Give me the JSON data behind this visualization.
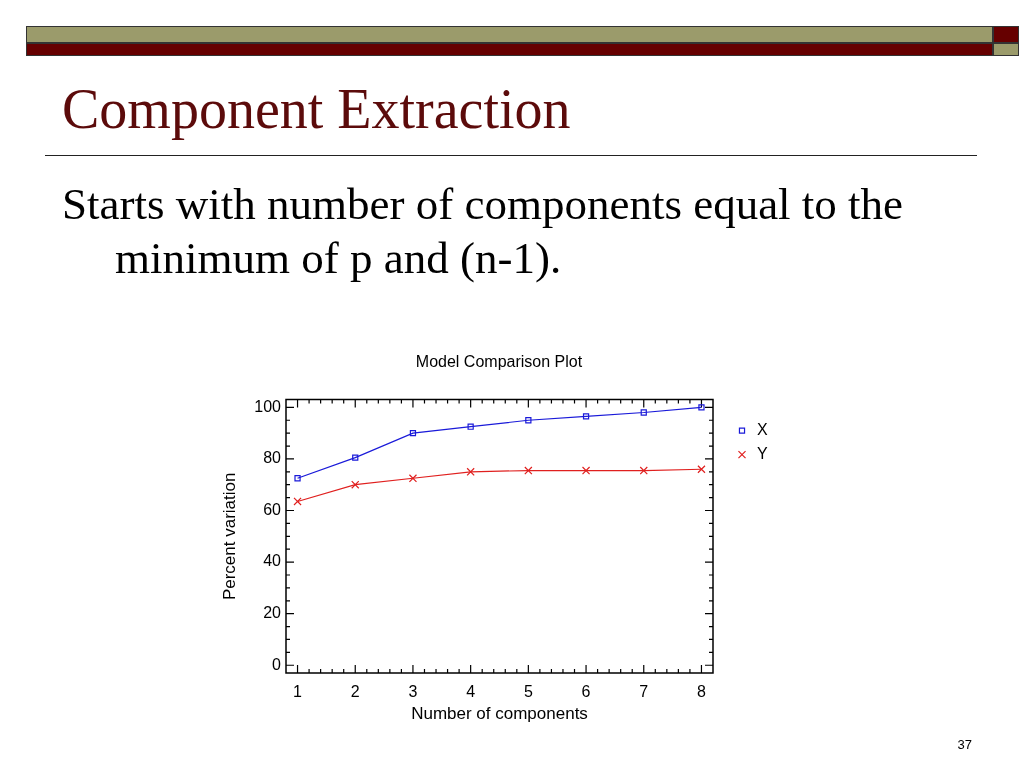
{
  "chart_data": {
    "type": "line",
    "title": "Component Extraction",
    "subtitle": "Starts with number of components equal to the minimum of p and (n-1).",
    "annotations": [
      "Model Comparison Plot",
      "37"
    ],
    "xlabel": "Number of components",
    "ylabel": "Percent variation",
    "x": [
      1,
      2,
      3,
      4,
      5,
      6,
      7,
      8
    ],
    "series": [
      {
        "name": "X",
        "color": "#1a1ad9",
        "marker": "square",
        "values": [
          72.5,
          80.5,
          90,
          92.5,
          95,
          96.5,
          98,
          100
        ]
      },
      {
        "name": "Y",
        "color": "#e0201f",
        "marker": "cross",
        "values": [
          63.5,
          70,
          72.5,
          75,
          75.5,
          75.5,
          75.5,
          76
        ]
      }
    ],
    "xlim": [
      0.8,
      8.2
    ],
    "xticks": [
      1,
      {
        "value": 1.2,
        "label": null
      },
      {
        "value": 1.4,
        "label": null
      },
      {
        "value": 1.6,
        "label": null
      },
      {
        "value": 1.8,
        "label": null
      },
      2,
      {
        "value": 2.2,
        "label": null
      },
      {
        "value": 2.4,
        "label": null
      },
      {
        "value": 2.6,
        "label": null
      },
      {
        "value": 2.8,
        "label": null
      },
      3,
      {
        "value": 3.2,
        "label": null
      },
      {
        "value": 3.4,
        "label": null
      },
      {
        "value": 3.6,
        "label": null
      },
      {
        "value": 3.8,
        "label": null
      },
      4,
      {
        "value": 4.2,
        "label": null
      },
      {
        "value": 4.4,
        "label": null
      },
      {
        "value": 4.6,
        "label": null
      },
      {
        "value": 4.8,
        "label": null
      },
      5,
      {
        "value": 5.2,
        "label": null
      },
      {
        "value": 5.4,
        "label": null
      },
      {
        "value": 5.6,
        "label": null
      },
      {
        "value": 5.8,
        "label": null
      },
      6,
      {
        "value": 6.2,
        "label": null
      },
      {
        "value": 6.4,
        "label": null
      },
      {
        "value": 6.6,
        "label": null
      },
      {
        "value": 6.8,
        "label": null
      },
      7,
      {
        "value": 7.2,
        "label": null
      },
      {
        "value": 7.4,
        "label": null
      },
      {
        "value": 7.6,
        "label": null
      },
      {
        "value": 7.8,
        "label": null
      },
      8
    ],
    "ylim": [
      -3,
      103
    ],
    "yticks": [
      0,
      {
        "value": 5,
        "label": null
      },
      {
        "value": 10,
        "label": null
      },
      {
        "value": 15,
        "label": null
      },
      20,
      {
        "value": 25,
        "label": null
      },
      {
        "value": 30,
        "label": null
      },
      {
        "value": 35,
        "label": null
      },
      40,
      {
        "value": 45,
        "label": null
      },
      {
        "value": 50,
        "label": null
      },
      {
        "value": 55,
        "label": null
      },
      60,
      {
        "value": 65,
        "label": null
      },
      {
        "value": 70,
        "label": null
      },
      {
        "value": 75,
        "label": null
      },
      80,
      {
        "value": 85,
        "label": null
      },
      {
        "value": 90,
        "label": null
      },
      {
        "value": 95,
        "label": null
      },
      100
    ],
    "legend": "right"
  }
}
